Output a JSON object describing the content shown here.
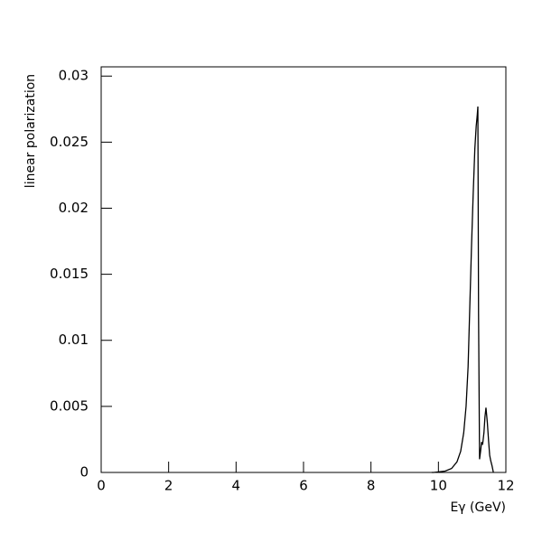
{
  "chart_data": {
    "type": "line",
    "y_label": "linear polarization",
    "x_label": "Eγ (GeV)",
    "x": [
      9.8,
      9.86,
      10.2,
      10.39,
      10.55,
      10.66,
      10.75,
      10.82,
      10.88,
      10.93,
      10.98,
      11.03,
      11.08,
      11.12,
      11.15,
      11.17,
      11.19,
      11.22,
      11.25,
      11.28,
      11.31,
      11.35,
      11.38,
      11.41,
      11.45,
      11.49,
      11.52,
      11.55,
      11.59,
      11.63
    ],
    "series": [
      {
        "name": "polarization",
        "color": "#000000",
        "values": [
          0,
          0,
          0.0001,
          0.0003,
          0.0008,
          0.0016,
          0.003,
          0.005,
          0.008,
          0.0125,
          0.017,
          0.021,
          0.0245,
          0.0262,
          0.027,
          0.0277,
          0.012,
          0.001,
          0.0016,
          0.0023,
          0.0021,
          0.003,
          0.0042,
          0.0049,
          0.0038,
          0.0023,
          0.0013,
          0.0009,
          0.0005,
          0
        ]
      }
    ],
    "xlim": [
      0,
      12
    ],
    "xticks": [
      0,
      2,
      4,
      6,
      8,
      10,
      12
    ],
    "ylim": [
      0,
      0.0307
    ],
    "yticks": [
      0,
      0.005,
      0.01,
      0.015,
      0.02,
      0.025,
      0.03
    ],
    "grid": false
  }
}
